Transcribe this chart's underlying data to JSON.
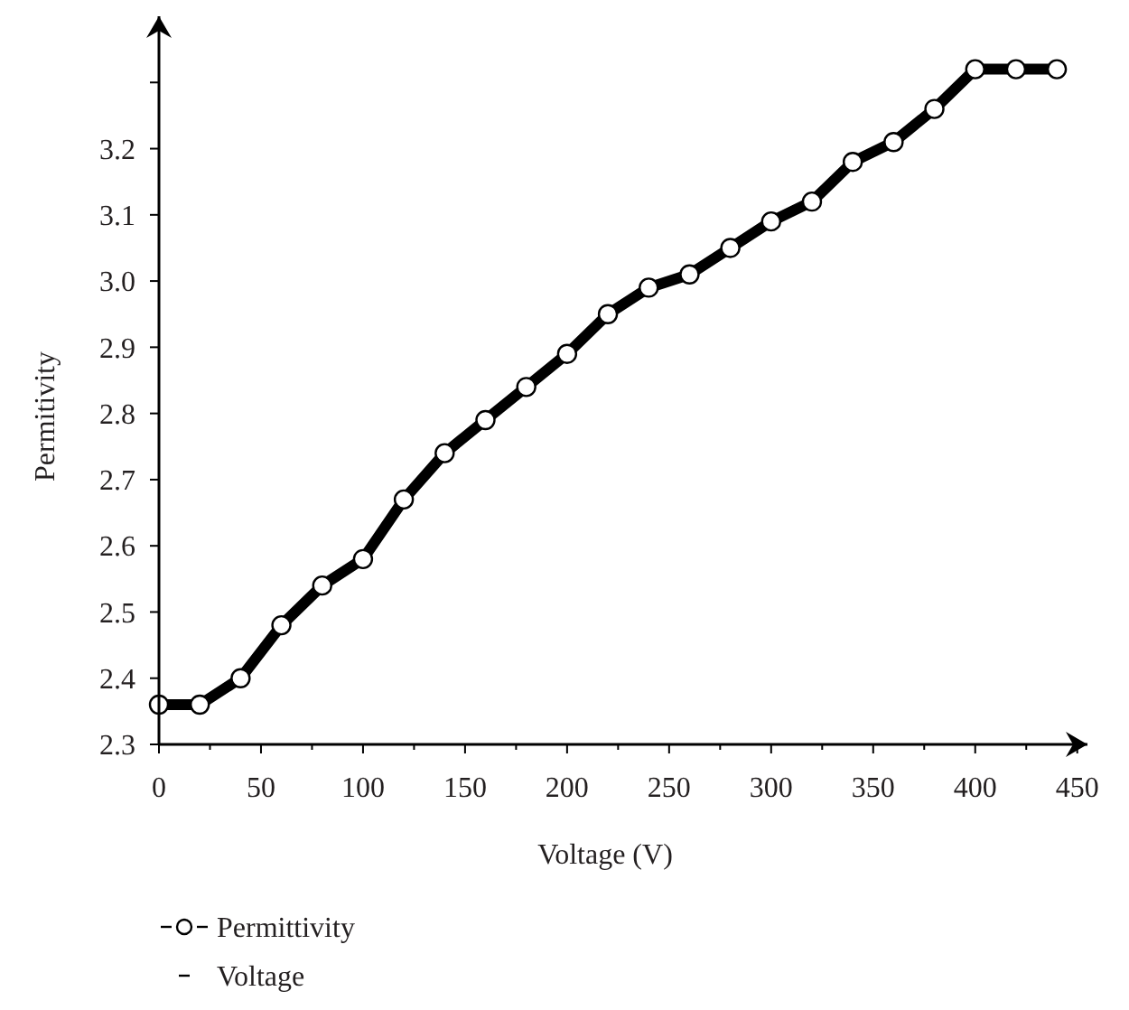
{
  "chart_data": {
    "type": "line",
    "xlabel": "Voltage (V)",
    "ylabel": "Permitivity",
    "x": [
      0,
      20,
      40,
      60,
      80,
      100,
      120,
      140,
      160,
      180,
      200,
      220,
      240,
      260,
      280,
      300,
      320,
      340,
      360,
      380,
      400,
      420,
      440
    ],
    "xlim": [
      0,
      455
    ],
    "ylim": [
      2.3,
      3.4
    ],
    "xticks": [
      0,
      50,
      100,
      150,
      200,
      250,
      300,
      350,
      400,
      450
    ],
    "yticks": [
      2.3,
      2.4,
      2.5,
      2.6,
      2.7,
      2.8,
      2.9,
      {
        "value": 3.0,
        "label": "3.0"
      },
      3.1,
      3.2,
      {
        "value": 3.3,
        "label": null
      }
    ],
    "series": [
      {
        "name": "Permittivity",
        "color": "#000000",
        "marker": "circle",
        "line_style": "solid",
        "values": [
          2.36,
          2.36,
          2.4,
          2.48,
          2.54,
          2.58,
          2.67,
          2.74,
          2.79,
          2.84,
          2.89,
          2.95,
          2.99,
          3.01,
          3.05,
          3.09,
          3.12,
          3.18,
          3.21,
          3.26,
          3.32,
          3.32,
          3.32
        ]
      },
      {
        "name": "Voltage",
        "color": "#000000",
        "marker": "none",
        "line_style": "solid",
        "values": [
          null,
          null,
          null,
          null,
          null,
          null,
          null,
          null,
          null,
          null,
          null,
          null,
          null,
          null,
          null,
          null,
          null,
          null,
          null,
          null,
          null,
          null,
          null
        ]
      }
    ],
    "grid": false,
    "legend": "bottom left"
  }
}
